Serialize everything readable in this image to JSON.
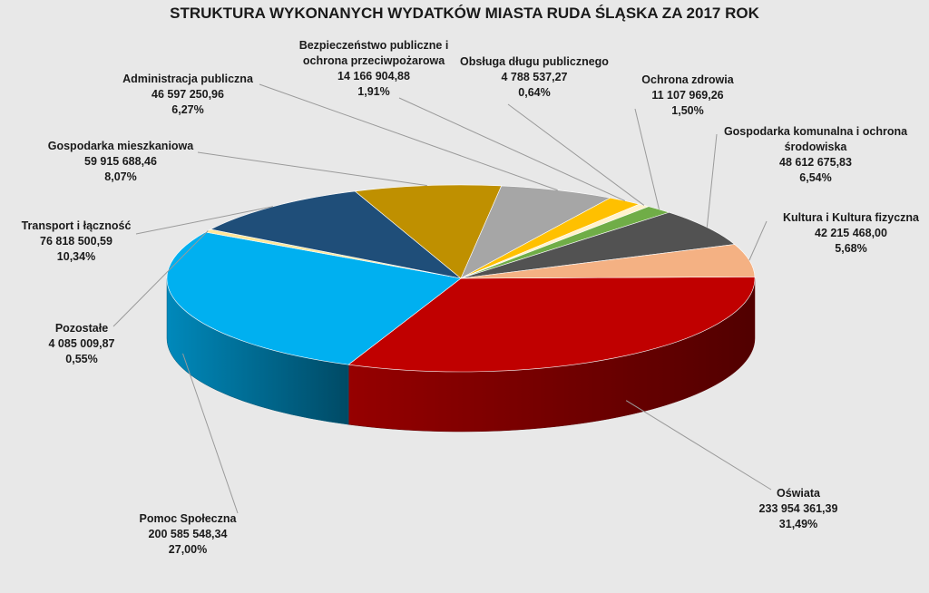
{
  "chart_data": {
    "type": "pie",
    "title": "STRUKTURA WYKONANYCH WYDATKÓW MIASTA RUDA ŚLĄSKA ZA 2017 ROK",
    "three_d": true,
    "legend": "none",
    "slices": [
      {
        "name": "Oświata",
        "value_text": "233 954 361,39",
        "percent_text": "31,49%",
        "value": 233954361.39,
        "percent": 31.49,
        "color": "#c00000"
      },
      {
        "name": "Pomoc Społeczna",
        "value_text": "200 585 548,34",
        "percent_text": "27,00%",
        "value": 200585548.34,
        "percent": 27.0,
        "color": "#00b0f0"
      },
      {
        "name": "Pozostałe",
        "value_text": "4 085 009,87",
        "percent_text": "0,55%",
        "value": 4085009.87,
        "percent": 0.55,
        "color": "#ffe699"
      },
      {
        "name": "Transport i łączność",
        "value_text": "76 818 500,59",
        "percent_text": "10,34%",
        "value": 76818500.59,
        "percent": 10.34,
        "color": "#1f4e79"
      },
      {
        "name": "Gospodarka mieszkaniowa",
        "value_text": "59 915 688,46",
        "percent_text": "8,07%",
        "value": 59915688.46,
        "percent": 8.07,
        "color": "#bf9000"
      },
      {
        "name": "Administracja publiczna",
        "value_text": "46 597 250,96",
        "percent_text": "6,27%",
        "value": 46597250.96,
        "percent": 6.27,
        "color": "#a6a6a6"
      },
      {
        "name": "Bezpieczeństwo publiczne i ochrona przeciwpożarowa",
        "name_lines": [
          "Bezpieczeństwo publiczne i",
          "ochrona przeciwpożarowa"
        ],
        "value_text": "14 166 904,88",
        "percent_text": "1,91%",
        "value": 14166904.88,
        "percent": 1.91,
        "color": "#ffc000"
      },
      {
        "name": "Obsługa długu publicznego",
        "value_text": "4 788 537,27",
        "percent_text": "0,64%",
        "value": 4788537.27,
        "percent": 0.64,
        "color": "#fff2cc"
      },
      {
        "name": "Ochrona zdrowia",
        "value_text": "11 107 969,26",
        "percent_text": "1,50%",
        "value": 11107969.26,
        "percent": 1.5,
        "color": "#70ad47"
      },
      {
        "name": "Gospodarka komunalna i ochrona środowiska",
        "name_lines": [
          "Gospodarka komunalna i ochrona",
          "środowiska"
        ],
        "value_text": "48 612 675,83",
        "percent_text": "6,54%",
        "value": 48612675.83,
        "percent": 6.54,
        "color": "#525252"
      },
      {
        "name": "Kultura i Kultura fizyczna",
        "value_text": "42 215 468,00",
        "percent_text": "5,68%",
        "value": 42215468.0,
        "percent": 5.68,
        "color": "#f4b183"
      }
    ]
  }
}
